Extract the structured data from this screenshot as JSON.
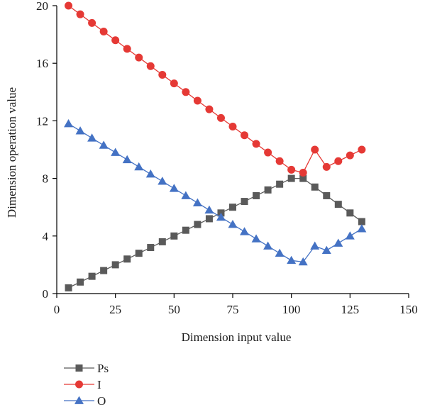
{
  "chart_data": {
    "type": "line",
    "title": "",
    "xlabel": "Dimension input value",
    "ylabel": "Dimension operation value",
    "xlim": [
      0,
      150
    ],
    "ylim": [
      0,
      20
    ],
    "xticks": [
      0,
      25,
      50,
      75,
      100,
      125,
      150
    ],
    "yticks": [
      0,
      4,
      8,
      12,
      16,
      20
    ],
    "grid": false,
    "legend_position": "bottom-left, below axes",
    "x": [
      5,
      10,
      15,
      20,
      25,
      30,
      35,
      40,
      45,
      50,
      55,
      60,
      65,
      70,
      75,
      80,
      85,
      90,
      95,
      100,
      105,
      110,
      115,
      120,
      125,
      130
    ],
    "series": [
      {
        "name": "Ps",
        "color": "#5a5a5a",
        "marker": "square",
        "values": [
          0.4,
          0.8,
          1.2,
          1.6,
          2.0,
          2.4,
          2.8,
          3.2,
          3.6,
          4.0,
          4.4,
          4.8,
          5.2,
          5.6,
          6.0,
          6.4,
          6.8,
          7.2,
          7.6,
          8.0,
          8.0,
          7.4,
          6.8,
          6.2,
          5.6,
          5.0
        ]
      },
      {
        "name": "I",
        "color": "#e53935",
        "marker": "circle",
        "values": [
          20.0,
          19.4,
          18.8,
          18.2,
          17.6,
          17.0,
          16.4,
          15.8,
          15.2,
          14.6,
          14.0,
          13.4,
          12.8,
          12.2,
          11.6,
          11.0,
          10.4,
          9.8,
          9.2,
          8.6,
          8.4,
          10.0,
          8.8,
          9.2,
          9.6,
          10.0
        ]
      },
      {
        "name": "O",
        "color": "#4472c4",
        "marker": "triangle",
        "values": [
          11.8,
          11.3,
          10.8,
          10.3,
          9.8,
          9.3,
          8.8,
          8.3,
          7.8,
          7.3,
          6.8,
          6.3,
          5.8,
          5.3,
          4.8,
          4.3,
          3.8,
          3.3,
          2.8,
          2.3,
          2.2,
          3.3,
          3.0,
          3.5,
          4.0,
          4.5
        ]
      }
    ]
  }
}
